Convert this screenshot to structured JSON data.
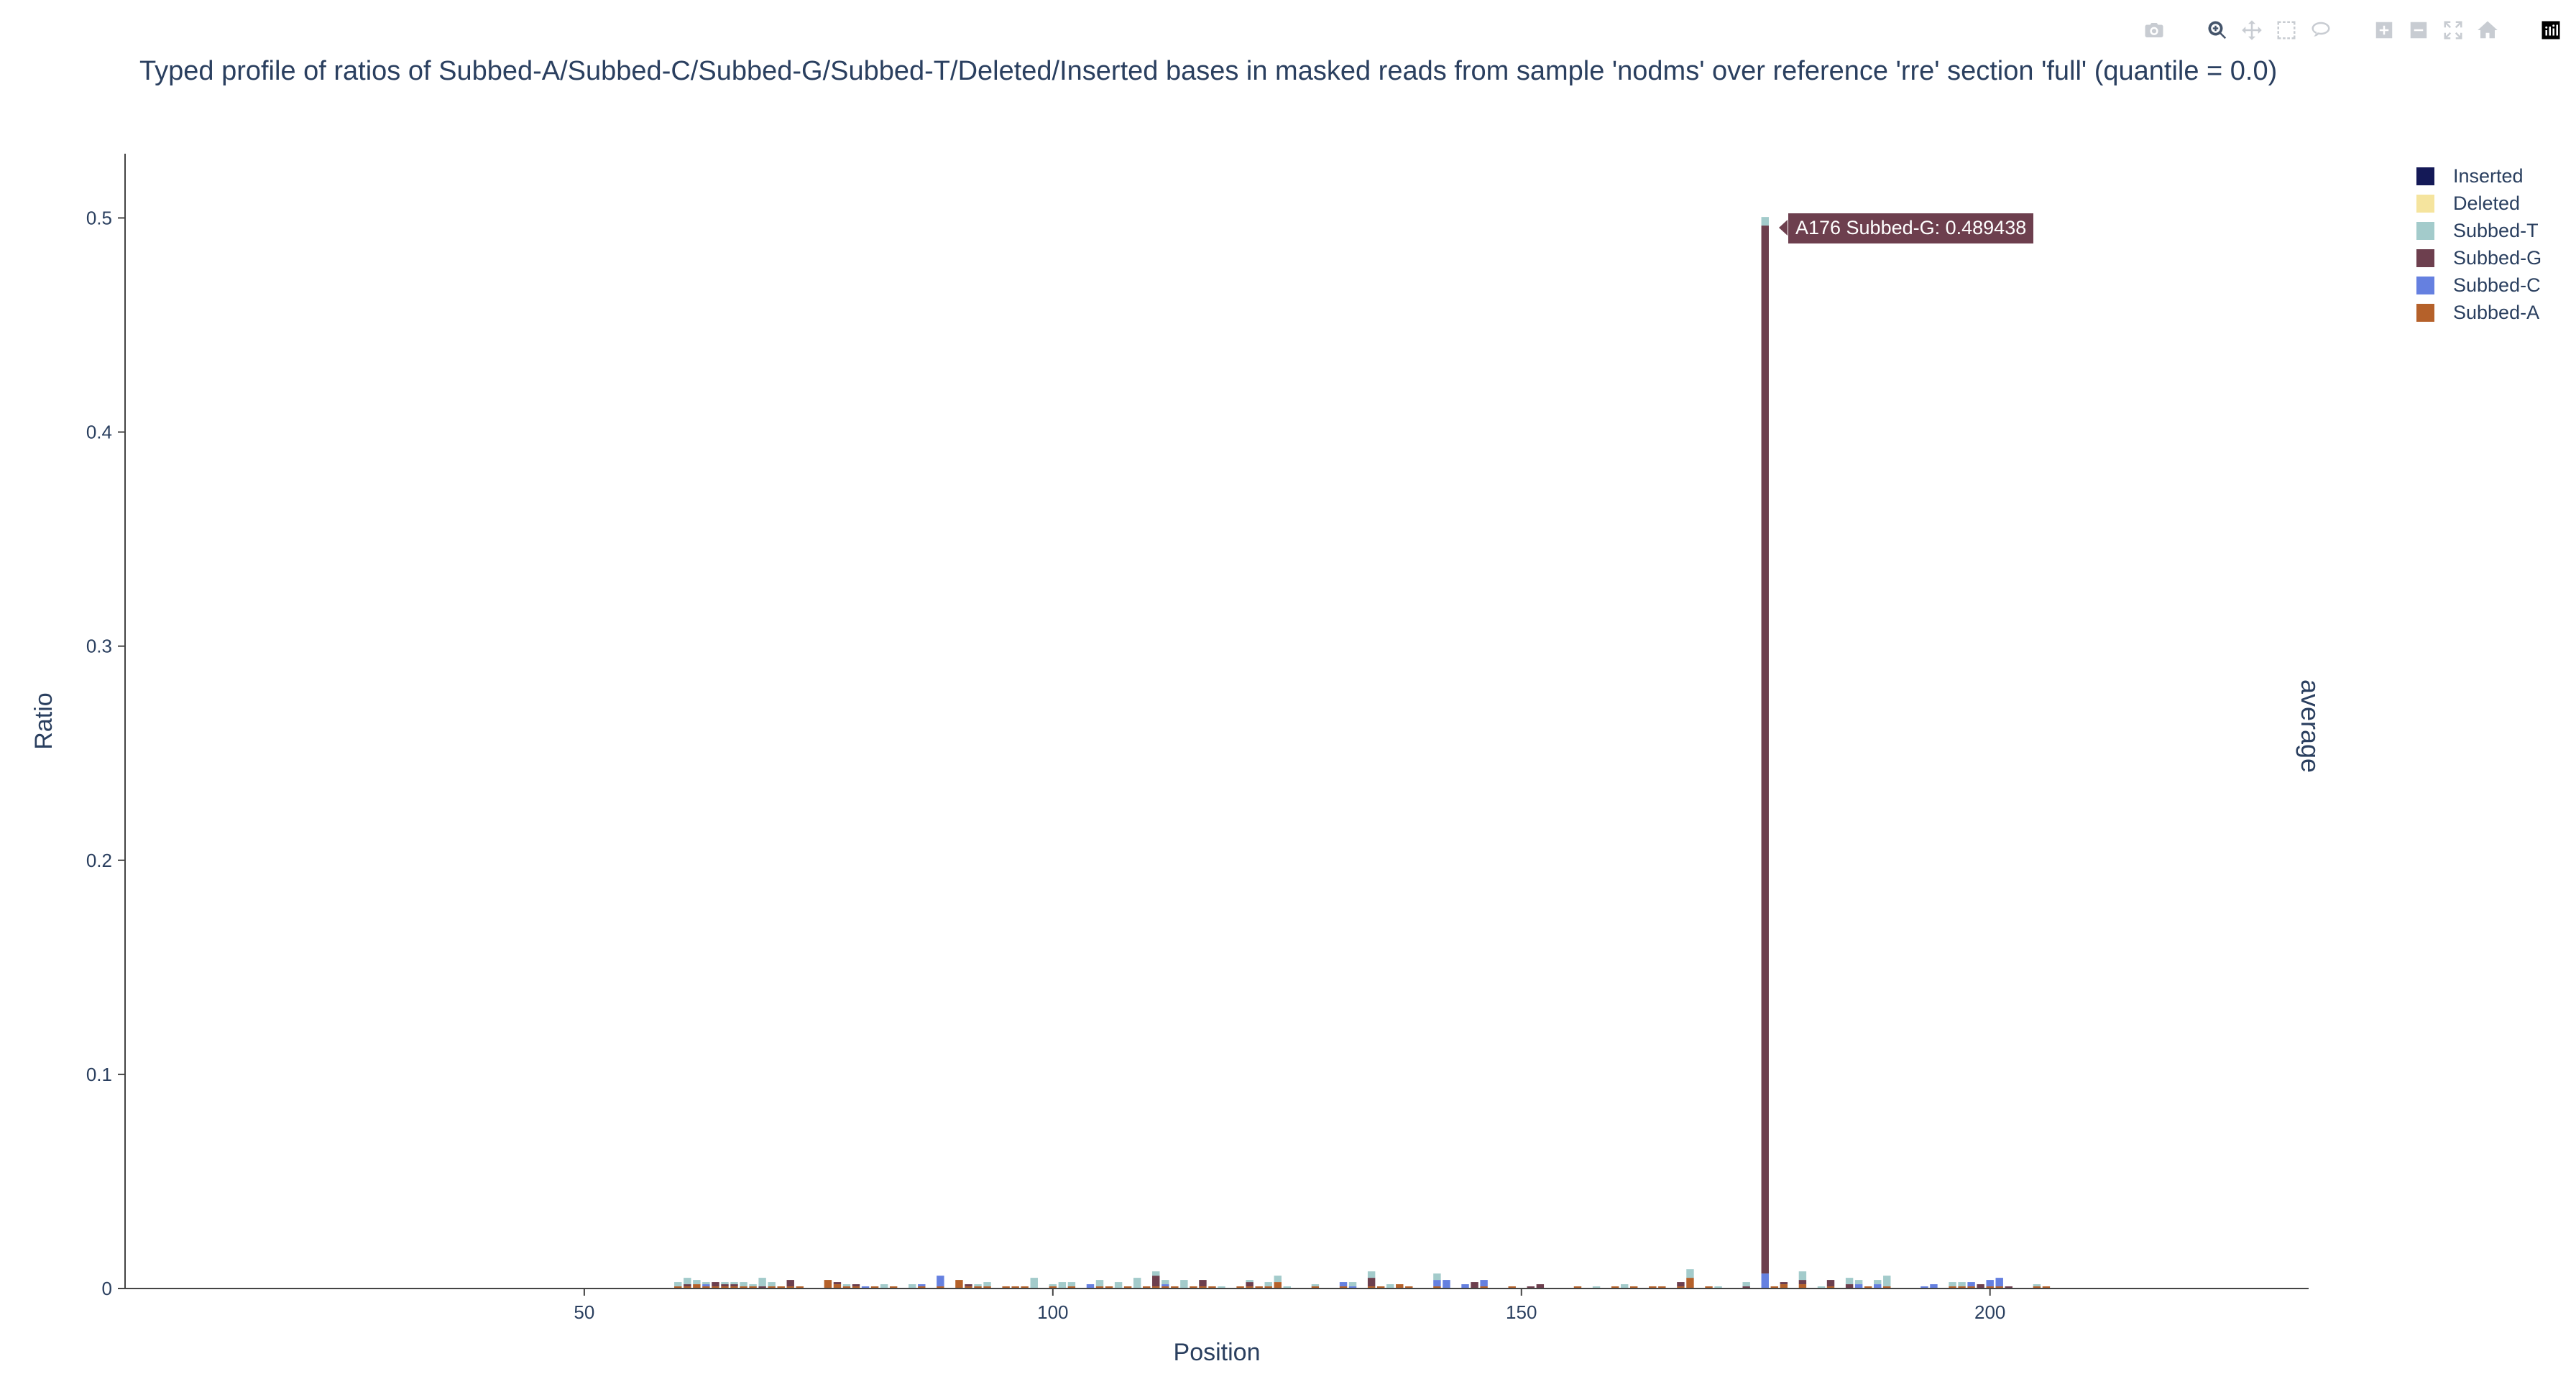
{
  "toolbar": {
    "buttons": [
      {
        "name": "camera-icon",
        "title": "Download plot as a png"
      },
      {
        "name": "zoom-icon",
        "title": "Zoom"
      },
      {
        "name": "pan-icon",
        "title": "Pan"
      },
      {
        "name": "box-select-icon",
        "title": "Box Select"
      },
      {
        "name": "lasso-select-icon",
        "title": "Lasso Select"
      },
      {
        "name": "zoom-in-icon",
        "title": "Zoom in"
      },
      {
        "name": "zoom-out-icon",
        "title": "Zoom out"
      },
      {
        "name": "autoscale-icon",
        "title": "Autoscale"
      },
      {
        "name": "reset-axes-icon",
        "title": "Reset axes"
      },
      {
        "name": "plotly-logo-icon",
        "title": "Produced with Plotly"
      }
    ]
  },
  "side_label": "average",
  "hover": {
    "text": "A176 Subbed-G: 0.489438",
    "position": 176,
    "series": "Subbed-G"
  },
  "chart_data": {
    "type": "bar",
    "barmode": "stack",
    "title": "Typed profile of ratios of Subbed-A/Subbed-C/Subbed-G/Subbed-T/Deleted/Inserted bases in masked reads from sample 'nodms' over reference 'rre' section 'full' (quantile = 0.0)",
    "xlabel": "Position",
    "ylabel": "Ratio",
    "xlim": [
      1,
      234
    ],
    "ylim": [
      0,
      0.53
    ],
    "x_ticks": [
      50,
      100,
      150,
      200
    ],
    "y_ticks": [
      0,
      0.1,
      0.2,
      0.3,
      0.4,
      0.5
    ],
    "y_tick_labels": [
      "0",
      "0.1",
      "0.2",
      "0.3",
      "0.4",
      "0.5"
    ],
    "legend_position": "top-right",
    "legend_order": [
      "Inserted",
      "Deleted",
      "Subbed-T",
      "Subbed-G",
      "Subbed-C",
      "Subbed-A"
    ],
    "colors": {
      "Subbed-A": "#b5612a",
      "Subbed-C": "#6580e0",
      "Subbed-G": "#6d3f4e",
      "Subbed-T": "#a3cbcb",
      "Deleted": "#f5e49e",
      "Inserted": "#141957"
    },
    "x": [
      60,
      61,
      62,
      63,
      64,
      65,
      66,
      67,
      68,
      69,
      70,
      71,
      72,
      73,
      74,
      75,
      76,
      77,
      78,
      79,
      80,
      81,
      82,
      83,
      84,
      85,
      86,
      87,
      88,
      89,
      90,
      91,
      92,
      93,
      94,
      95,
      96,
      97,
      98,
      99,
      100,
      101,
      102,
      103,
      104,
      105,
      106,
      107,
      108,
      109,
      110,
      111,
      112,
      113,
      114,
      115,
      116,
      117,
      118,
      119,
      120,
      121,
      122,
      123,
      124,
      125,
      126,
      127,
      128,
      129,
      130,
      131,
      132,
      133,
      134,
      135,
      136,
      137,
      138,
      139,
      140,
      141,
      142,
      143,
      144,
      145,
      146,
      147,
      148,
      149,
      150,
      151,
      152,
      153,
      154,
      155,
      156,
      157,
      158,
      159,
      160,
      161,
      162,
      163,
      164,
      165,
      166,
      167,
      168,
      169,
      170,
      171,
      172,
      173,
      174,
      175,
      176,
      177,
      178,
      179,
      180,
      181,
      182,
      183,
      184,
      185,
      186,
      187,
      188,
      189,
      190,
      191,
      192,
      193,
      194,
      195,
      196,
      197,
      198,
      199,
      200,
      201,
      202,
      203,
      204,
      205,
      206
    ],
    "series": [
      {
        "name": "Subbed-A",
        "values": [
          0.001,
          0.001,
          0.002,
          0.001,
          0.001,
          0.001,
          0.001,
          0.001,
          0.001,
          0.0,
          0.001,
          0.001,
          0.001,
          0.001,
          0.0,
          0.0,
          0.004,
          0.002,
          0.001,
          0.001,
          0.0,
          0.001,
          0.0,
          0.001,
          0.0,
          0.0,
          0.001,
          0.0,
          0.001,
          0.0,
          0.004,
          0.001,
          0.001,
          0.001,
          0.0,
          0.001,
          0.001,
          0.001,
          0.0,
          0.0,
          0.001,
          0.0,
          0.001,
          0.0,
          0.0,
          0.001,
          0.001,
          0.0,
          0.001,
          0.0,
          0.001,
          0.001,
          0.001,
          0.001,
          0.0,
          0.001,
          0.001,
          0.001,
          0.0,
          0.0,
          0.001,
          0.001,
          0.001,
          0.001,
          0.003,
          0.0,
          0.0,
          0.0,
          0.001,
          0.0,
          0.0,
          0.001,
          0.0,
          0.0,
          0.001,
          0.001,
          0.0,
          0.002,
          0.001,
          0.0,
          0.0,
          0.001,
          0.0,
          0.0,
          0.0,
          0.0,
          0.001,
          0.0,
          0.0,
          0.001,
          0.0,
          0.0,
          0.0,
          0.0,
          0.0,
          0.0,
          0.001,
          0.0,
          0.0,
          0.0,
          0.001,
          0.0,
          0.001,
          0.0,
          0.001,
          0.001,
          0.0,
          0.001,
          0.005,
          0.0,
          0.001,
          0.0,
          0.0,
          0.0,
          0.0,
          0.0,
          0.0,
          0.001,
          0.002,
          0.0,
          0.002,
          0.0,
          0.0,
          0.001,
          0.0,
          0.0,
          0.0,
          0.001,
          0.0,
          0.001,
          0.0,
          0.0,
          0.0,
          0.0,
          0.0,
          0.0,
          0.001,
          0.001,
          0.001,
          0.0,
          0.001,
          0.001,
          0.0,
          0.0,
          0.0,
          0.001,
          0.001
        ],
        "note": ""
      },
      {
        "name": "Subbed-C",
        "values": [
          0.0,
          0.0,
          0.0,
          0.001,
          0.0,
          0.0,
          0.0,
          0.0,
          0.0,
          0.0,
          0.0,
          0.0,
          0.0,
          0.0,
          0.0,
          0.0,
          0.0,
          0.0,
          0.0,
          0.0,
          0.001,
          0.0,
          0.0,
          0.0,
          0.0,
          0.0,
          0.001,
          0.0,
          0.005,
          0.0,
          0.0,
          0.0,
          0.0,
          0.0,
          0.0,
          0.0,
          0.0,
          0.0,
          0.0,
          0.0,
          0.0,
          0.0,
          0.0,
          0.0,
          0.002,
          0.0,
          0.0,
          0.0,
          0.0,
          0.0,
          0.0,
          0.0,
          0.001,
          0.0,
          0.0,
          0.0,
          0.0,
          0.0,
          0.0,
          0.0,
          0.0,
          0.0,
          0.0,
          0.0,
          0.0,
          0.0,
          0.0,
          0.0,
          0.0,
          0.0,
          0.0,
          0.002,
          0.001,
          0.0,
          0.0,
          0.0,
          0.0,
          0.0,
          0.0,
          0.0,
          0.0,
          0.003,
          0.004,
          0.0,
          0.002,
          0.0,
          0.003,
          0.0,
          0.0,
          0.0,
          0.0,
          0.0,
          0.0,
          0.0,
          0.0,
          0.0,
          0.0,
          0.0,
          0.0,
          0.0,
          0.0,
          0.0,
          0.0,
          0.0,
          0.0,
          0.0,
          0.0,
          0.0,
          0.0,
          0.0,
          0.0,
          0.0,
          0.0,
          0.0,
          0.0,
          0.0,
          0.007,
          0.0,
          0.0,
          0.0,
          0.0,
          0.0,
          0.0,
          0.0,
          0.0,
          0.0,
          0.002,
          0.0,
          0.002,
          0.0,
          0.0,
          0.0,
          0.0,
          0.001,
          0.002,
          0.0,
          0.0,
          0.0,
          0.002,
          0.0,
          0.003,
          0.004,
          0.0,
          0.0,
          0.0,
          0.0,
          0.0
        ]
      },
      {
        "name": "Subbed-G",
        "values": [
          0.0,
          0.001,
          0.0,
          0.0,
          0.002,
          0.001,
          0.001,
          0.0,
          0.0,
          0.001,
          0.0,
          0.0,
          0.003,
          0.0,
          0.0,
          0.0,
          0.0,
          0.001,
          0.0,
          0.001,
          0.0,
          0.0,
          0.0,
          0.0,
          0.0,
          0.0,
          0.0,
          0.0,
          0.0,
          0.0,
          0.0,
          0.001,
          0.0,
          0.0,
          0.0,
          0.0,
          0.0,
          0.0,
          0.0,
          0.0,
          0.0,
          0.0,
          0.0,
          0.0,
          0.0,
          0.0,
          0.0,
          0.0,
          0.0,
          0.0,
          0.0,
          0.005,
          0.0,
          0.0,
          0.0,
          0.0,
          0.003,
          0.0,
          0.0,
          0.0,
          0.0,
          0.002,
          0.0,
          0.0,
          0.0,
          0.0,
          0.0,
          0.0,
          0.0,
          0.0,
          0.0,
          0.0,
          0.0,
          0.0,
          0.004,
          0.0,
          0.0,
          0.0,
          0.0,
          0.0,
          0.0,
          0.0,
          0.0,
          0.0,
          0.0,
          0.003,
          0.0,
          0.0,
          0.0,
          0.0,
          0.0,
          0.001,
          0.002,
          0.0,
          0.0,
          0.0,
          0.0,
          0.0,
          0.0,
          0.0,
          0.0,
          0.0,
          0.0,
          0.0,
          0.0,
          0.0,
          0.0,
          0.002,
          0.0,
          0.0,
          0.0,
          0.0,
          0.0,
          0.0,
          0.001,
          0.0,
          0.489438,
          0.0,
          0.001,
          0.0,
          0.002,
          0.0,
          0.0,
          0.003,
          0.0,
          0.002,
          0.0,
          0.0,
          0.0,
          0.0,
          0.0,
          0.0,
          0.0,
          0.0,
          0.0,
          0.0,
          0.0,
          0.0,
          0.0,
          0.002,
          0.0,
          0.0,
          0.001,
          0.0,
          0.0,
          0.0,
          0.0
        ]
      },
      {
        "name": "Subbed-T",
        "values": [
          0.002,
          0.003,
          0.002,
          0.001,
          0.0,
          0.001,
          0.001,
          0.002,
          0.001,
          0.004,
          0.002,
          0.0,
          0.0,
          0.0,
          0.0,
          0.0,
          0.0,
          0.0,
          0.001,
          0.0,
          0.0,
          0.0,
          0.002,
          0.0,
          0.0,
          0.002,
          0.0,
          0.0,
          0.0,
          0.0,
          0.0,
          0.0,
          0.001,
          0.002,
          0.0,
          0.0,
          0.0,
          0.0,
          0.005,
          0.0,
          0.001,
          0.003,
          0.002,
          0.0,
          0.0,
          0.003,
          0.0,
          0.003,
          0.0,
          0.005,
          0.0,
          0.002,
          0.002,
          0.0,
          0.004,
          0.0,
          0.0,
          0.0,
          0.001,
          0.0,
          0.0,
          0.001,
          0.0,
          0.002,
          0.003,
          0.001,
          0.0,
          0.0,
          0.001,
          0.0,
          0.0,
          0.0,
          0.002,
          0.0,
          0.003,
          0.0,
          0.002,
          0.0,
          0.0,
          0.0,
          0.0,
          0.003,
          0.0,
          0.0,
          0.0,
          0.0,
          0.0,
          0.0,
          0.0,
          0.0,
          0.0,
          0.0,
          0.0,
          0.0,
          0.0,
          0.0,
          0.0,
          0.0,
          0.001,
          0.0,
          0.0,
          0.002,
          0.0,
          0.0,
          0.0,
          0.0,
          0.0,
          0.0,
          0.004,
          0.0,
          0.0,
          0.001,
          0.0,
          0.0,
          0.002,
          0.0,
          0.004,
          0.0,
          0.0,
          0.0,
          0.004,
          0.0,
          0.001,
          0.0,
          0.0,
          0.003,
          0.002,
          0.0,
          0.002,
          0.005,
          0.0,
          0.0,
          0.0,
          0.0,
          0.0,
          0.0,
          0.002,
          0.002,
          0.0,
          0.0,
          0.0,
          0.0,
          0.0,
          0.0,
          0.0,
          0.001,
          0.0
        ]
      },
      {
        "name": "Deleted",
        "values": [
          0.0,
          0.0,
          0.0,
          0.0,
          0.0,
          0.0,
          0.0,
          0.0,
          0.0,
          0.0,
          0.0,
          0.0,
          0.0,
          0.0,
          0.0,
          0.0,
          0.0,
          0.0,
          0.0,
          0.0,
          0.0,
          0.0,
          0.0,
          0.0,
          0.0,
          0.0,
          0.0,
          0.0,
          0.0,
          0.0,
          0.0,
          0.0,
          0.0,
          0.0,
          0.0,
          0.0,
          0.0,
          0.0,
          0.0,
          0.0,
          0.0,
          0.0,
          0.0,
          0.0,
          0.0,
          0.0,
          0.0,
          0.0,
          0.0,
          0.0,
          0.0,
          0.0,
          0.0,
          0.0,
          0.0,
          0.0,
          0.0,
          0.0,
          0.0,
          0.0,
          0.0,
          0.0,
          0.0,
          0.0,
          0.0,
          0.0,
          0.0,
          0.0,
          0.0,
          0.0,
          0.0,
          0.0,
          0.0,
          0.0,
          0.0,
          0.0,
          0.0,
          0.0,
          0.0,
          0.0,
          0.0,
          0.0,
          0.0,
          0.0,
          0.0,
          0.0,
          0.0,
          0.0,
          0.0,
          0.0,
          0.0,
          0.0,
          0.0,
          0.0,
          0.0,
          0.0,
          0.0,
          0.0,
          0.0,
          0.0,
          0.0,
          0.0,
          0.0,
          0.0,
          0.0,
          0.0,
          0.0,
          0.0,
          0.0,
          0.0,
          0.0,
          0.0,
          0.0,
          0.0,
          0.0,
          0.0,
          0.0,
          0.0,
          0.0,
          0.0,
          0.0,
          0.0,
          0.0,
          0.0,
          0.0,
          0.0,
          0.0,
          0.0,
          0.0,
          0.0,
          0.0,
          0.0,
          0.0,
          0.0,
          0.0,
          0.0,
          0.0,
          0.0,
          0.0,
          0.0,
          0.0,
          0.0,
          0.0,
          0.0,
          0.0,
          0.0,
          0.0
        ]
      },
      {
        "name": "Inserted",
        "values": [
          0.0,
          0.0,
          0.0,
          0.0,
          0.0,
          0.0,
          0.0,
          0.0,
          0.0,
          0.0,
          0.0,
          0.0,
          0.0,
          0.0,
          0.0,
          0.0,
          0.0,
          0.0,
          0.0,
          0.0,
          0.0,
          0.0,
          0.0,
          0.0,
          0.0,
          0.0,
          0.0,
          0.0,
          0.0,
          0.0,
          0.0,
          0.0,
          0.0,
          0.0,
          0.0,
          0.0,
          0.0,
          0.0,
          0.0,
          0.0,
          0.0,
          0.0,
          0.0,
          0.0,
          0.0,
          0.0,
          0.0,
          0.0,
          0.0,
          0.0,
          0.0,
          0.0,
          0.0,
          0.0,
          0.0,
          0.0,
          0.0,
          0.0,
          0.0,
          0.0,
          0.0,
          0.0,
          0.0,
          0.0,
          0.0,
          0.0,
          0.0,
          0.0,
          0.0,
          0.0,
          0.0,
          0.0,
          0.0,
          0.0,
          0.0,
          0.0,
          0.0,
          0.0,
          0.0,
          0.0,
          0.0,
          0.0,
          0.0,
          0.0,
          0.0,
          0.0,
          0.0,
          0.0,
          0.0,
          0.0,
          0.0,
          0.0,
          0.0,
          0.0,
          0.0,
          0.0,
          0.0,
          0.0,
          0.0,
          0.0,
          0.0,
          0.0,
          0.0,
          0.0,
          0.0,
          0.0,
          0.0,
          0.0,
          0.0,
          0.0,
          0.0,
          0.0,
          0.0,
          0.0,
          0.0,
          0.0,
          0.0,
          0.0,
          0.0,
          0.0,
          0.0,
          0.0,
          0.0,
          0.0,
          0.0,
          0.0,
          0.0,
          0.0,
          0.0,
          0.0,
          0.0,
          0.0,
          0.0,
          0.0,
          0.0,
          0.0,
          0.0,
          0.0,
          0.0,
          0.0,
          0.0,
          0.0,
          0.0,
          0.0,
          0.0,
          0.0,
          0.0
        ]
      }
    ]
  }
}
